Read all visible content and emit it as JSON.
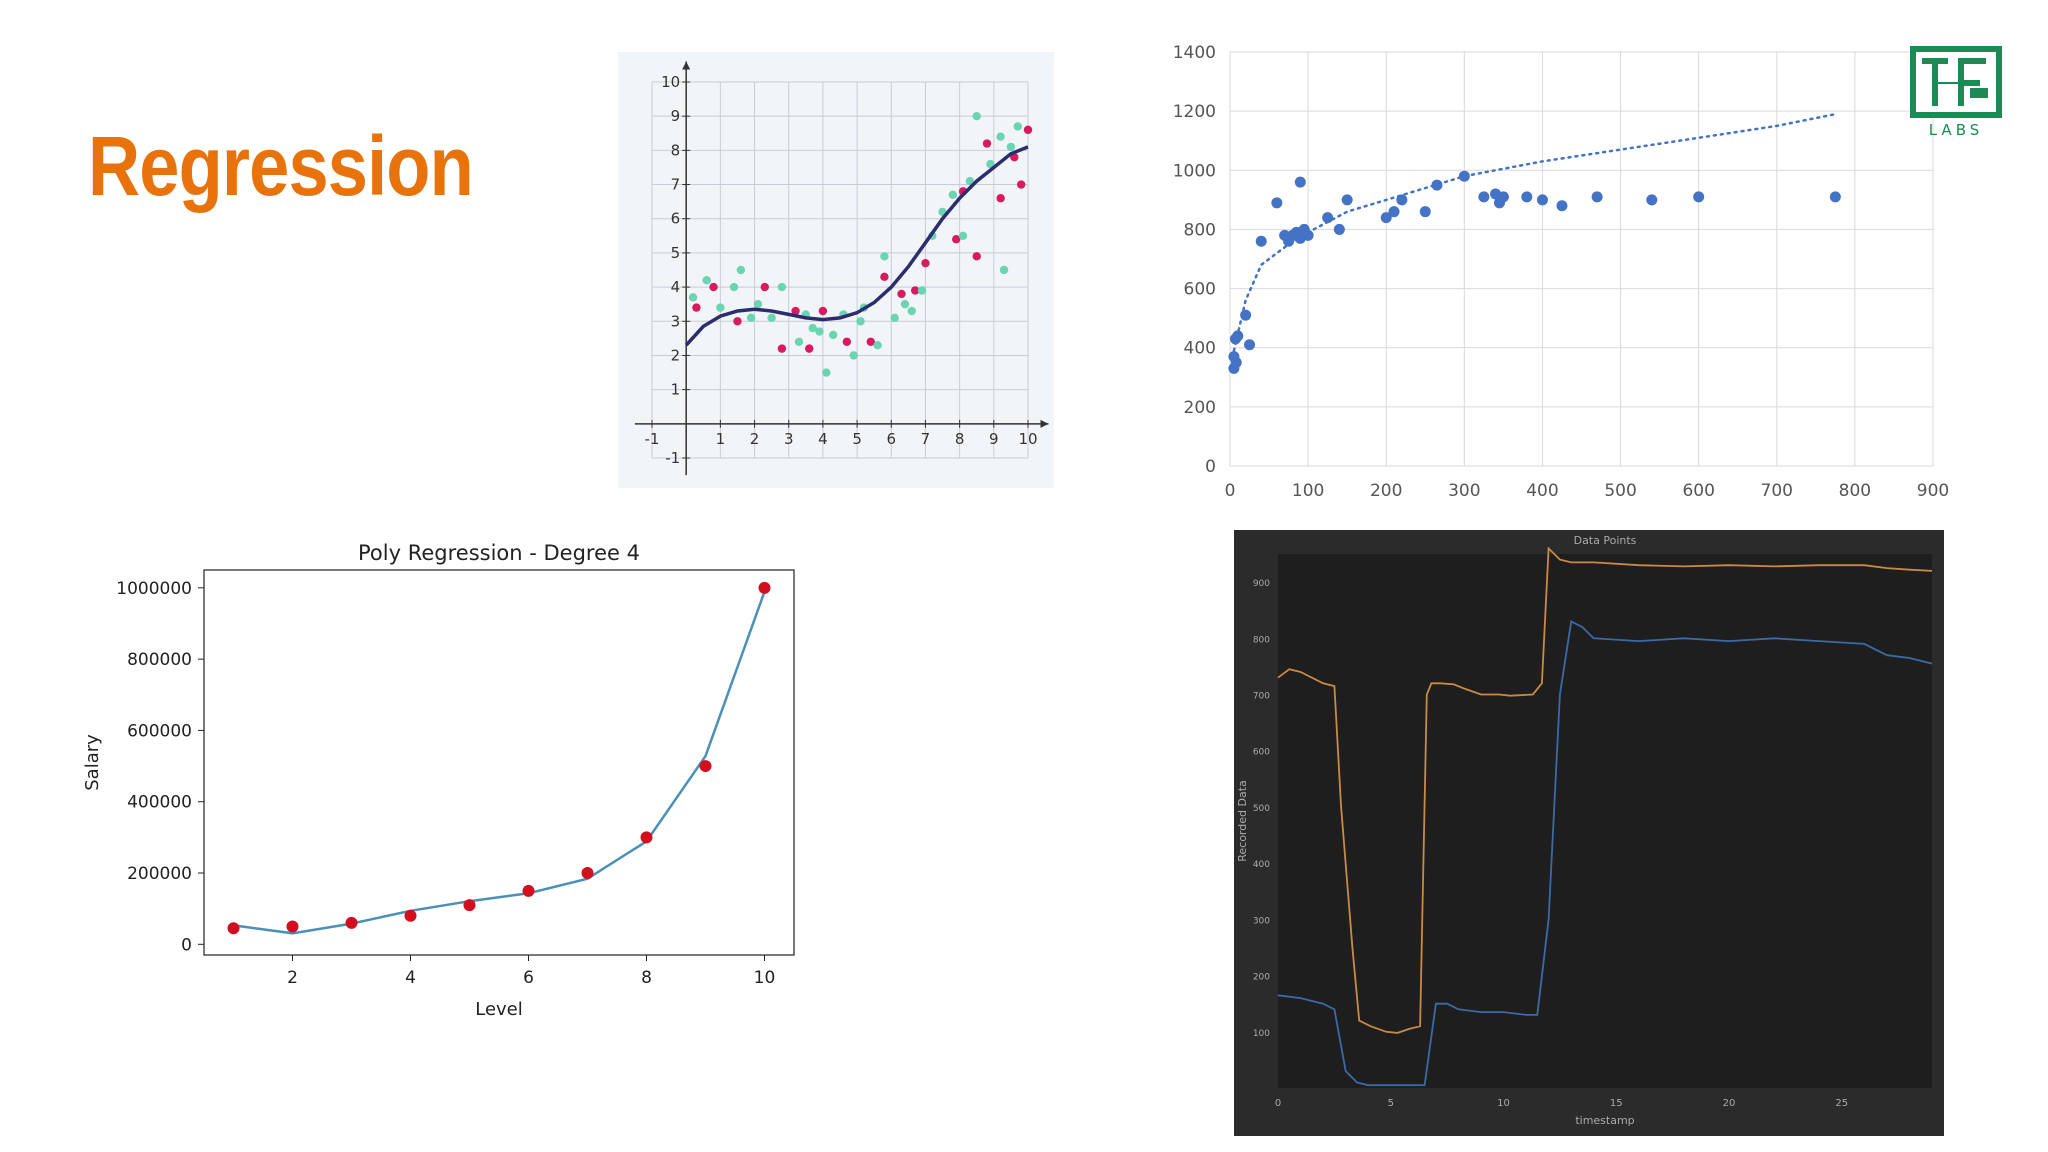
{
  "slide": {
    "title": "Regression"
  },
  "logo": {
    "text": "LABS",
    "color": "#1b8a55"
  },
  "chart_data": [
    {
      "id": "polynomial-fit-scatter",
      "type": "scatter",
      "xlim": [
        -1,
        10
      ],
      "ylim": [
        -1,
        10
      ],
      "x_ticks": [
        -1,
        1,
        2,
        3,
        4,
        5,
        6,
        7,
        8,
        9,
        10
      ],
      "y_ticks": [
        -1,
        1,
        2,
        3,
        4,
        5,
        6,
        7,
        8,
        9,
        10
      ],
      "grid": true,
      "series": [
        {
          "color": "#d81b60",
          "points": [
            [
              0.3,
              3.4
            ],
            [
              0.8,
              4.0
            ],
            [
              1.5,
              3.0
            ],
            [
              2.3,
              4.0
            ],
            [
              2.8,
              2.2
            ],
            [
              3.2,
              3.3
            ],
            [
              3.6,
              2.2
            ],
            [
              4.0,
              3.3
            ],
            [
              4.7,
              2.4
            ],
            [
              5.4,
              2.4
            ],
            [
              5.8,
              4.3
            ],
            [
              6.3,
              3.8
            ],
            [
              6.7,
              3.9
            ],
            [
              7.0,
              4.7
            ],
            [
              7.9,
              5.4
            ],
            [
              8.1,
              6.8
            ],
            [
              8.5,
              4.9
            ],
            [
              8.8,
              8.2
            ],
            [
              9.2,
              6.6
            ],
            [
              9.6,
              7.8
            ],
            [
              9.8,
              7.0
            ],
            [
              10.0,
              8.6
            ]
          ]
        },
        {
          "color": "#6cd3b3",
          "points": [
            [
              0.2,
              3.7
            ],
            [
              0.6,
              4.2
            ],
            [
              1.0,
              3.4
            ],
            [
              1.4,
              4.0
            ],
            [
              1.6,
              4.5
            ],
            [
              1.9,
              3.1
            ],
            [
              2.1,
              3.5
            ],
            [
              2.5,
              3.1
            ],
            [
              2.8,
              4.0
            ],
            [
              3.3,
              2.4
            ],
            [
              3.5,
              3.2
            ],
            [
              3.7,
              2.8
            ],
            [
              3.9,
              2.7
            ],
            [
              4.1,
              1.5
            ],
            [
              4.3,
              2.6
            ],
            [
              4.6,
              3.2
            ],
            [
              4.9,
              2.0
            ],
            [
              5.1,
              3.0
            ],
            [
              5.2,
              3.4
            ],
            [
              5.6,
              2.3
            ],
            [
              5.8,
              4.9
            ],
            [
              6.1,
              3.1
            ],
            [
              6.4,
              3.5
            ],
            [
              6.6,
              3.3
            ],
            [
              6.9,
              3.9
            ],
            [
              7.2,
              5.5
            ],
            [
              7.5,
              6.2
            ],
            [
              7.8,
              6.7
            ],
            [
              8.1,
              5.5
            ],
            [
              8.3,
              7.1
            ],
            [
              8.5,
              9.0
            ],
            [
              8.9,
              7.6
            ],
            [
              9.2,
              8.4
            ],
            [
              9.3,
              4.5
            ],
            [
              9.5,
              8.1
            ],
            [
              9.7,
              8.7
            ]
          ]
        }
      ],
      "fit_line": {
        "color": "#2b2d6e",
        "x": [
          0,
          0.5,
          1,
          1.5,
          2,
          2.5,
          3,
          3.5,
          4,
          4.5,
          5,
          5.5,
          6,
          6.5,
          7,
          7.5,
          8,
          8.5,
          9,
          9.5,
          10
        ],
        "y": [
          2.3,
          2.85,
          3.15,
          3.3,
          3.35,
          3.3,
          3.2,
          3.1,
          3.05,
          3.1,
          3.25,
          3.55,
          4.0,
          4.6,
          5.3,
          6.0,
          6.6,
          7.1,
          7.5,
          7.9,
          8.1
        ]
      }
    },
    {
      "id": "log-trend-scatter",
      "type": "scatter",
      "xlim": [
        0,
        900
      ],
      "ylim": [
        0,
        1400
      ],
      "x_ticks": [
        0,
        100,
        200,
        300,
        400,
        500,
        600,
        700,
        800,
        900
      ],
      "y_ticks": [
        0,
        200,
        400,
        600,
        800,
        1000,
        1200,
        1400
      ],
      "grid": true,
      "series": [
        {
          "color": "#4472c4",
          "points": [
            [
              5,
              330
            ],
            [
              5,
              370
            ],
            [
              8,
              350
            ],
            [
              7,
              430
            ],
            [
              10,
              440
            ],
            [
              20,
              510
            ],
            [
              25,
              410
            ],
            [
              40,
              760
            ],
            [
              60,
              890
            ],
            [
              70,
              780
            ],
            [
              75,
              760
            ],
            [
              80,
              780
            ],
            [
              85,
              790
            ],
            [
              90,
              770
            ],
            [
              95,
              800
            ],
            [
              100,
              780
            ],
            [
              90,
              960
            ],
            [
              125,
              840
            ],
            [
              140,
              800
            ],
            [
              150,
              900
            ],
            [
              200,
              840
            ],
            [
              210,
              860
            ],
            [
              220,
              900
            ],
            [
              250,
              860
            ],
            [
              265,
              950
            ],
            [
              300,
              980
            ],
            [
              325,
              910
            ],
            [
              340,
              920
            ],
            [
              345,
              890
            ],
            [
              350,
              910
            ],
            [
              380,
              910
            ],
            [
              400,
              900
            ],
            [
              425,
              880
            ],
            [
              470,
              910
            ],
            [
              540,
              900
            ],
            [
              600,
              910
            ],
            [
              775,
              910
            ]
          ]
        }
      ],
      "trendline": {
        "style": "dotted",
        "color": "#4472c4",
        "x": [
          5,
          20,
          40,
          70,
          100,
          150,
          200,
          300,
          400,
          500,
          600,
          700,
          775
        ],
        "y": [
          390,
          560,
          680,
          740,
          790,
          860,
          900,
          980,
          1030,
          1070,
          1110,
          1150,
          1190
        ]
      }
    },
    {
      "id": "poly-regression-degree-4",
      "type": "line",
      "title": "Poly Regression - Degree 4",
      "xlabel": "Level",
      "ylabel": "Salary",
      "xlim": [
        0.5,
        10.5
      ],
      "ylim": [
        -30000,
        1050000
      ],
      "x_ticks": [
        2,
        4,
        6,
        8,
        10
      ],
      "y_ticks": [
        0,
        200000,
        400000,
        600000,
        800000,
        1000000
      ],
      "points": {
        "color": "#d10f1f",
        "x": [
          1,
          2,
          3,
          4,
          5,
          6,
          7,
          8,
          9,
          10
        ],
        "y": [
          45000,
          50000,
          60000,
          80000,
          110000,
          150000,
          200000,
          300000,
          500000,
          1000000
        ]
      },
      "line": {
        "color": "#4a90b8",
        "x": [
          1,
          2,
          3,
          4,
          5,
          6,
          7,
          8,
          9,
          10
        ],
        "y": [
          53000,
          31000,
          58000,
          94000,
          121000,
          143000,
          184000,
          289000,
          528000,
          989000
        ]
      }
    },
    {
      "id": "data-points",
      "type": "line",
      "title": "Data Points",
      "xlabel": "timestamp",
      "ylabel": "Recorded Data",
      "xlim": [
        0,
        29
      ],
      "ylim": [
        0,
        950
      ],
      "x_ticks": [
        0,
        5,
        10,
        15,
        20,
        25
      ],
      "y_ticks": [
        100,
        200,
        300,
        400,
        500,
        600,
        700,
        800,
        900
      ],
      "series": [
        {
          "color": "#c98a44",
          "x": [
            0,
            0.5,
            1,
            2,
            2.5,
            2.8,
            3.3,
            3.6,
            4.1,
            4.8,
            5.3,
            5.8,
            6.3,
            6.6,
            6.8,
            7.2,
            7.8,
            8.3,
            9,
            9.8,
            10.3,
            11.3,
            11.7,
            12,
            12.5,
            13,
            14,
            16,
            18,
            20,
            22,
            24,
            26,
            27,
            28,
            29
          ],
          "y": [
            730,
            745,
            740,
            720,
            715,
            500,
            250,
            120,
            110,
            100,
            98,
            105,
            110,
            700,
            720,
            720,
            718,
            710,
            700,
            700,
            698,
            700,
            720,
            960,
            940,
            935,
            935,
            930,
            928,
            930,
            928,
            930,
            930,
            925,
            922,
            920
          ]
        },
        {
          "color": "#3a6aa8",
          "x": [
            0,
            1,
            2,
            2.5,
            3,
            3.5,
            4,
            5,
            5.5,
            6,
            6.3,
            6.5,
            7,
            7.5,
            8,
            9,
            10,
            11,
            11.5,
            12,
            12.5,
            13,
            13.5,
            14,
            16,
            18,
            20,
            22,
            24,
            26,
            27,
            28,
            29
          ],
          "y": [
            165,
            160,
            150,
            140,
            30,
            10,
            5,
            5,
            5,
            5,
            5,
            5,
            150,
            150,
            140,
            135,
            135,
            130,
            130,
            300,
            700,
            830,
            820,
            800,
            795,
            800,
            795,
            800,
            795,
            790,
            770,
            765,
            755
          ]
        }
      ]
    }
  ]
}
